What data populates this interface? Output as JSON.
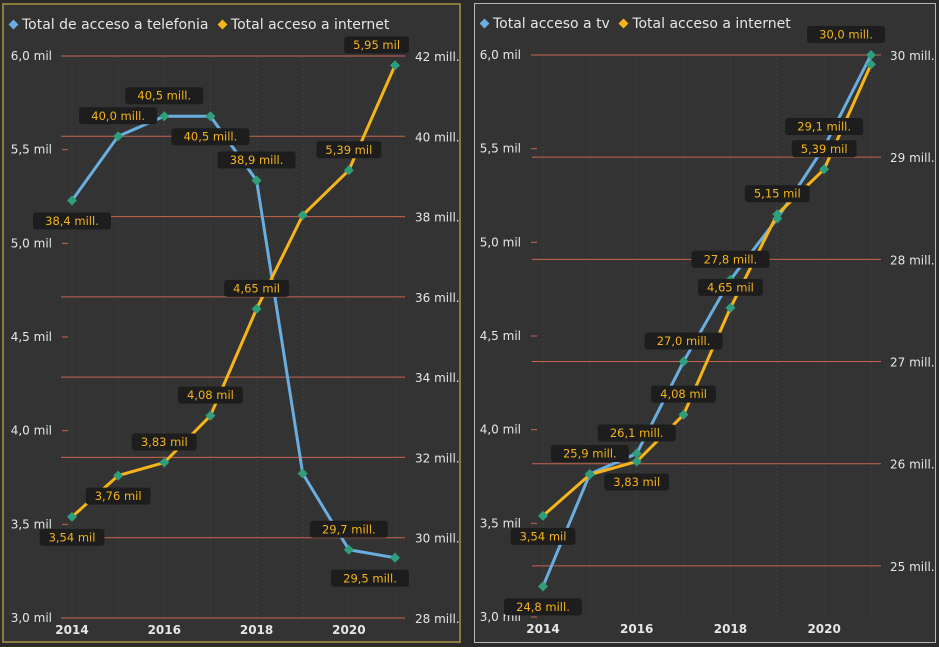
{
  "colors": {
    "series_a": "#6aaee0",
    "series_b": "#f5b419",
    "point": "#2e9e7c",
    "grid": "#c8644e",
    "axis_text": "#e6e6e6",
    "label_bg": "#1d1d1d",
    "panel_bg": "#333333",
    "left_border": "#8a7a3e",
    "right_border": "#b8b8b8"
  },
  "chart_data": [
    {
      "type": "line",
      "legend": [
        "Total de acceso a telefonia",
        "Total acceso a internet"
      ],
      "x": [
        2014,
        2015,
        2016,
        2017,
        2018,
        2019,
        2020,
        2021
      ],
      "x_ticks": [
        2014,
        2016,
        2018,
        2020
      ],
      "x_tick_labels": [
        "2014",
        "2016",
        "2018",
        "2020"
      ],
      "y_left": {
        "range": [
          3.0,
          6.0
        ],
        "ticks": [
          3.0,
          3.5,
          4.0,
          4.5,
          5.0,
          5.5,
          6.0
        ],
        "tick_labels": [
          "3,0 mil",
          "3,5 mil",
          "4,0 mil",
          "4,5 mil",
          "5,0 mil",
          "5,5 mil",
          "6,0 mil"
        ]
      },
      "y_right": {
        "range": [
          28,
          42
        ],
        "ticks": [
          28,
          30,
          32,
          34,
          36,
          38,
          40,
          42
        ],
        "tick_labels": [
          "28 mill.",
          "30 mill.",
          "32 mill.",
          "34 mill.",
          "36 mill.",
          "38 mill.",
          "40 mill.",
          "42 mill."
        ]
      },
      "grid": "horizontal lines at right-axis ticks",
      "series": [
        {
          "name": "Total de acceso a telefonia",
          "axis": "right",
          "color": "#6aaee0",
          "values": [
            38.4,
            40.0,
            40.5,
            40.5,
            38.9,
            31.6,
            29.7,
            29.5
          ],
          "labels": [
            "38,4 mill.",
            "40,0 mill.",
            "40,5 mill.",
            "40,5 mill.",
            "38,9 mill.",
            "",
            "29,7 mill.",
            "29,5 mill."
          ],
          "label_pos": [
            "below",
            "above",
            "above",
            "below",
            "above",
            "",
            "above",
            "below"
          ]
        },
        {
          "name": "Total acceso a internet",
          "axis": "left",
          "color": "#f5b419",
          "values": [
            3.54,
            3.76,
            3.83,
            4.08,
            4.65,
            5.15,
            5.39,
            5.95
          ],
          "labels": [
            "3,54 mil",
            "3,76 mil",
            "3,83 mil",
            "4,08 mil",
            "4,65 mil",
            "",
            "5,39 mil",
            "5,95 mil"
          ],
          "label_pos": [
            "below",
            "below",
            "above",
            "above",
            "above",
            "",
            "above",
            "above"
          ]
        }
      ]
    },
    {
      "type": "line",
      "legend": [
        "Total acceso a tv",
        "Total acceso a internet"
      ],
      "x": [
        2014,
        2015,
        2016,
        2017,
        2018,
        2019,
        2020,
        2021
      ],
      "x_ticks": [
        2014,
        2016,
        2018,
        2020
      ],
      "x_tick_labels": [
        "2014",
        "2016",
        "2018",
        "2020"
      ],
      "y_left": {
        "range": [
          3.0,
          6.0
        ],
        "ticks": [
          3.0,
          3.5,
          4.0,
          4.5,
          5.0,
          5.5,
          6.0
        ],
        "tick_labels": [
          "3,0 mil",
          "3,5 mil",
          "4,0 mil",
          "4,5 mil",
          "5,0 mil",
          "5,5 mil",
          "6,0 mil"
        ]
      },
      "y_right": {
        "range": [
          24.5,
          30
        ],
        "ticks": [
          25,
          26,
          27,
          28,
          29,
          30
        ],
        "tick_labels": [
          "25 mill.",
          "26 mill.",
          "27 mill.",
          "28 mill.",
          "29 mill.",
          "30 mill."
        ]
      },
      "grid": "horizontal lines at right-axis ticks",
      "series": [
        {
          "name": "Total acceso a tv",
          "axis": "right",
          "color": "#6aaee0",
          "values": [
            24.8,
            25.9,
            26.1,
            27.0,
            27.8,
            28.4,
            29.1,
            30.0
          ],
          "labels": [
            "24,8 mill.",
            "25,9 mill.",
            "26,1 mill.",
            "27,0 mill.",
            "27,8 mill.",
            "",
            "29,1 mill.",
            "30,0 mill."
          ],
          "label_pos": [
            "below",
            "above",
            "above",
            "above",
            "above",
            "",
            "above",
            "above"
          ]
        },
        {
          "name": "Total acceso a internet",
          "axis": "left",
          "color": "#f5b419",
          "values": [
            3.54,
            3.76,
            3.83,
            4.08,
            4.65,
            5.15,
            5.39,
            5.95
          ],
          "labels": [
            "3,54 mil",
            "",
            "3,83 mil",
            "4,08 mil",
            "4,65 mil",
            "5,15 mil",
            "5,39 mil",
            ""
          ],
          "label_pos": [
            "below",
            "",
            "below",
            "above",
            "above",
            "above",
            "above",
            ""
          ]
        }
      ]
    }
  ]
}
